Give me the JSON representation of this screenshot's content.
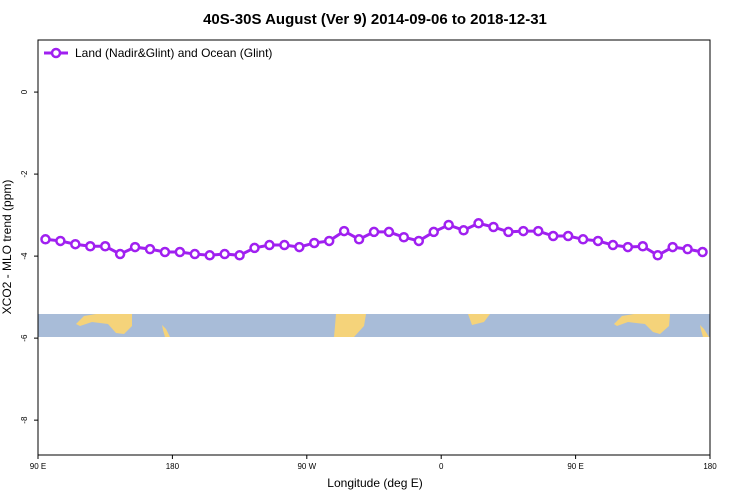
{
  "chart_data": {
    "type": "line",
    "title": "40S-30S August (Ver 9)   2014-09-06 to 2018-12-31",
    "x_label": "Longitude (deg E)",
    "y_label": "XCO2 - MLO trend (ppm)",
    "xlim": [
      90,
      540
    ],
    "ylim": [
      -8.85,
      1.27
    ],
    "xticks": [
      {
        "value": 90,
        "label": "90 E"
      },
      180,
      {
        "value": 270,
        "label": "90 W"
      },
      {
        "value": 360,
        "label": "0"
      },
      {
        "value": 450,
        "label": "90 E"
      },
      {
        "value": 540,
        "label": "180"
      }
    ],
    "yticks": [
      0,
      -2,
      -4,
      -6,
      -8
    ],
    "legend_position": "top-left",
    "x": [
      95,
      105,
      115,
      125,
      135,
      145,
      155,
      165,
      175,
      185,
      195,
      205,
      215,
      225,
      235,
      245,
      255,
      265,
      275,
      285,
      295,
      305,
      315,
      325,
      335,
      345,
      355,
      365,
      375,
      385,
      395,
      405,
      415,
      425,
      435,
      445,
      455,
      465,
      475,
      485,
      495,
      505,
      515,
      525,
      535
    ],
    "series": [
      {
        "name": "Land (Nadir&Glint) and Ocean (Glint)",
        "color": "#a020f0",
        "values": [
          -3.59,
          -3.63,
          -3.71,
          -3.76,
          -3.76,
          -3.95,
          -3.78,
          -3.83,
          -3.9,
          -3.9,
          -3.95,
          -3.98,
          -3.95,
          -3.98,
          -3.8,
          -3.73,
          -3.73,
          -3.78,
          -3.68,
          -3.63,
          -3.39,
          -3.59,
          -3.41,
          -3.41,
          -3.54,
          -3.63,
          -3.41,
          -3.24,
          -3.37,
          -3.2,
          -3.29,
          -3.41,
          -3.39,
          -3.39,
          -3.51,
          -3.51,
          -3.59,
          -3.63,
          -3.73,
          -3.78,
          -3.76,
          -3.98,
          -3.78,
          -3.83,
          -3.9
        ]
      }
    ]
  }
}
